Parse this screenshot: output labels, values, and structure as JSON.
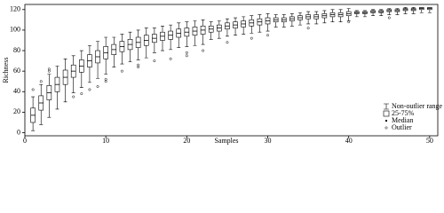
{
  "chart_data": {
    "type": "boxplot",
    "x_label": "Samples",
    "y_label": "Richness",
    "x": [
      1,
      2,
      3,
      4,
      5,
      6,
      7,
      8,
      9,
      10,
      11,
      12,
      13,
      14,
      15,
      16,
      17,
      18,
      19,
      20,
      21,
      22,
      23,
      24,
      25,
      26,
      27,
      28,
      29,
      30,
      31,
      32,
      33,
      34,
      35,
      36,
      37,
      38,
      39,
      40,
      41,
      42,
      43,
      44,
      45,
      46,
      47,
      48,
      49,
      50
    ],
    "whisker_low": [
      2,
      8,
      15,
      23,
      30,
      39,
      44,
      49,
      53,
      57,
      64,
      67,
      69,
      71,
      73,
      78,
      80,
      81,
      83,
      84,
      85,
      86,
      91,
      92,
      94,
      95,
      96,
      97,
      98,
      99,
      103,
      103,
      104,
      105,
      106,
      106,
      107,
      108,
      108,
      109,
      113,
      113,
      114,
      114,
      115,
      115,
      116,
      116,
      117,
      117
    ],
    "q1": [
      10,
      22,
      32,
      40,
      47,
      54,
      59,
      64,
      68,
      72,
      76,
      79,
      81,
      83,
      85,
      88,
      90,
      91,
      93,
      94,
      95,
      96,
      98,
      99,
      101,
      102,
      103,
      104,
      105,
      106,
      108,
      108,
      109,
      110,
      111,
      111,
      112,
      113,
      113,
      114,
      116,
      116,
      117,
      117,
      118,
      118,
      119,
      119,
      120,
      120
    ],
    "median": [
      17,
      29,
      39,
      47,
      54,
      60,
      65,
      70,
      74,
      78,
      81,
      84,
      86,
      88,
      90,
      92,
      94,
      95,
      97,
      98,
      99,
      100,
      101,
      102,
      104,
      105,
      106,
      107,
      108,
      109,
      110,
      110,
      111,
      112,
      113,
      113,
      114,
      115,
      115,
      116,
      117,
      117,
      118,
      118,
      119,
      119,
      120,
      120,
      121,
      121
    ],
    "q3": [
      24,
      36,
      46,
      54,
      61,
      66,
      71,
      76,
      80,
      84,
      86,
      89,
      91,
      93,
      95,
      96,
      98,
      99,
      101,
      102,
      103,
      104,
      104,
      105,
      107,
      108,
      109,
      110,
      111,
      112,
      112,
      112,
      113,
      114,
      115,
      115,
      116,
      117,
      117,
      118,
      118,
      118,
      119,
      119,
      120,
      120,
      121,
      121,
      122,
      122
    ],
    "whisker_high": [
      35,
      47,
      57,
      65,
      72,
      75,
      80,
      85,
      89,
      93,
      93,
      96,
      98,
      100,
      102,
      102,
      104,
      105,
      107,
      108,
      109,
      110,
      108,
      109,
      111,
      112,
      113,
      114,
      115,
      116,
      115,
      115,
      116,
      117,
      118,
      118,
      119,
      120,
      120,
      121,
      119,
      119,
      120,
      120,
      121,
      121,
      122,
      122,
      122,
      122
    ],
    "outliers": [
      [
        42
      ],
      [
        50
      ],
      [
        60,
        62
      ],
      [],
      [],
      [
        35
      ],
      [
        38
      ],
      [
        42
      ],
      [
        45
      ],
      [
        50,
        52
      ],
      [],
      [
        60
      ],
      [],
      [
        64,
        66
      ],
      [],
      [
        70
      ],
      [],
      [
        72
      ],
      [],
      [
        75,
        78
      ],
      [],
      [
        80
      ],
      [],
      [],
      [
        88
      ],
      [],
      [],
      [
        92
      ],
      [],
      [
        95
      ],
      [],
      [],
      [],
      [],
      [
        102
      ],
      [],
      [],
      [],
      [],
      [
        108
      ],
      [],
      [],
      [],
      [],
      [
        112
      ],
      [],
      [],
      [],
      [],
      []
    ],
    "xlim": [
      0,
      51
    ],
    "xticks": [
      0,
      10,
      20,
      30,
      40,
      50
    ],
    "ylim": [
      -3,
      125
    ],
    "yticks": [
      0,
      20,
      40,
      60,
      80,
      100,
      120
    ],
    "color": "#000000",
    "legend": [
      "Non-outlier range",
      "25-75%",
      "Median",
      "Outlier"
    ]
  }
}
